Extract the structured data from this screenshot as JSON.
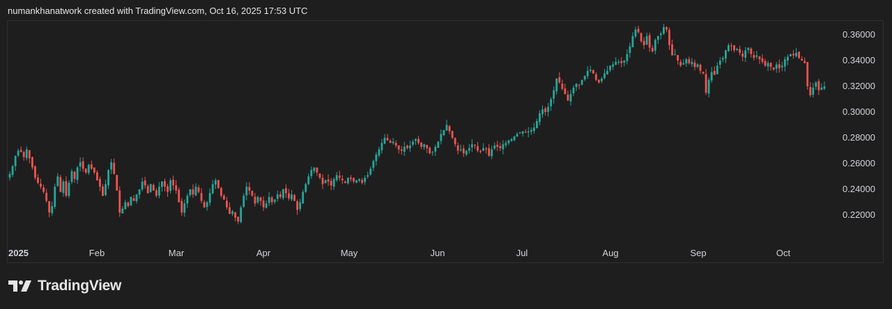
{
  "header": {
    "caption": "numankhanatwork created with TradingView.com, Oct 16, 2025 17:53 UTC"
  },
  "brand": {
    "logo_text": "TradingView",
    "logo_icon": "tradingview-logo-icon"
  },
  "colors": {
    "background": "#1e1e1e",
    "up": "#26a69a",
    "down": "#ef5350",
    "axis_text": "#d1d4dc"
  },
  "chart_data": {
    "type": "candlestick",
    "title": "",
    "xlabel": "",
    "ylabel": "",
    "ylim": [
      0.2,
      0.37
    ],
    "y_ticks": [
      "0.22000",
      "0.24000",
      "0.26000",
      "0.28000",
      "0.30000",
      "0.32000",
      "0.34000",
      "0.36000"
    ],
    "x_ticks": [
      "2025",
      "Feb",
      "Mar",
      "Apr",
      "May",
      "Jun",
      "Jul",
      "Aug",
      "Sep",
      "Oct"
    ],
    "grid": false,
    "close_series": [
      0.252,
      0.258,
      0.266,
      0.27,
      0.269,
      0.265,
      0.271,
      0.264,
      0.257,
      0.249,
      0.245,
      0.242,
      0.238,
      0.231,
      0.222,
      0.227,
      0.242,
      0.25,
      0.238,
      0.246,
      0.235,
      0.245,
      0.254,
      0.248,
      0.257,
      0.261,
      0.256,
      0.253,
      0.259,
      0.256,
      0.253,
      0.247,
      0.242,
      0.235,
      0.244,
      0.255,
      0.261,
      0.252,
      0.239,
      0.222,
      0.225,
      0.23,
      0.227,
      0.234,
      0.231,
      0.236,
      0.24,
      0.246,
      0.243,
      0.237,
      0.244,
      0.239,
      0.235,
      0.242,
      0.246,
      0.242,
      0.238,
      0.247,
      0.243,
      0.239,
      0.23,
      0.222,
      0.229,
      0.235,
      0.24,
      0.236,
      0.242,
      0.238,
      0.231,
      0.226,
      0.23,
      0.237,
      0.244,
      0.247,
      0.241,
      0.235,
      0.232,
      0.226,
      0.221,
      0.223,
      0.218,
      0.215,
      0.226,
      0.235,
      0.242,
      0.239,
      0.235,
      0.229,
      0.234,
      0.231,
      0.226,
      0.229,
      0.234,
      0.23,
      0.232,
      0.236,
      0.234,
      0.24,
      0.237,
      0.233,
      0.236,
      0.231,
      0.224,
      0.23,
      0.238,
      0.244,
      0.25,
      0.255,
      0.257,
      0.253,
      0.249,
      0.244,
      0.247,
      0.246,
      0.243,
      0.248,
      0.251,
      0.249,
      0.247,
      0.245,
      0.249,
      0.248,
      0.246,
      0.247,
      0.248,
      0.245,
      0.249,
      0.251,
      0.256,
      0.262,
      0.267,
      0.271,
      0.276,
      0.28,
      0.278,
      0.276,
      0.277,
      0.274,
      0.271,
      0.27,
      0.273,
      0.272,
      0.274,
      0.277,
      0.279,
      0.276,
      0.273,
      0.275,
      0.272,
      0.268,
      0.269,
      0.273,
      0.277,
      0.283,
      0.286,
      0.29,
      0.285,
      0.28,
      0.275,
      0.27,
      0.271,
      0.268,
      0.27,
      0.272,
      0.275,
      0.274,
      0.27,
      0.269,
      0.272,
      0.271,
      0.266,
      0.271,
      0.274,
      0.273,
      0.272,
      0.275,
      0.276,
      0.278,
      0.279,
      0.281,
      0.283,
      0.284,
      0.285,
      0.284,
      0.285,
      0.286,
      0.288,
      0.293,
      0.299,
      0.302,
      0.3,
      0.304,
      0.31,
      0.317,
      0.326,
      0.323,
      0.318,
      0.314,
      0.309,
      0.314,
      0.319,
      0.322,
      0.321,
      0.325,
      0.328,
      0.332,
      0.333,
      0.33,
      0.325,
      0.323,
      0.326,
      0.33,
      0.332,
      0.336,
      0.337,
      0.339,
      0.339,
      0.338,
      0.34,
      0.345,
      0.351,
      0.359,
      0.364,
      0.362,
      0.355,
      0.352,
      0.359,
      0.35,
      0.347,
      0.356,
      0.359,
      0.361,
      0.366,
      0.364,
      0.352,
      0.344,
      0.345,
      0.34,
      0.336,
      0.338,
      0.341,
      0.338,
      0.339,
      0.335,
      0.337,
      0.332,
      0.33,
      0.315,
      0.325,
      0.331,
      0.329,
      0.336,
      0.34,
      0.342,
      0.348,
      0.352,
      0.351,
      0.348,
      0.349,
      0.346,
      0.343,
      0.348,
      0.35,
      0.345,
      0.342,
      0.344,
      0.341,
      0.339,
      0.336,
      0.338,
      0.335,
      0.333,
      0.337,
      0.334,
      0.336,
      0.341,
      0.343,
      0.345,
      0.344,
      0.346,
      0.342,
      0.34,
      0.338,
      0.32,
      0.313,
      0.319,
      0.323,
      0.317,
      0.319,
      0.32
    ]
  }
}
